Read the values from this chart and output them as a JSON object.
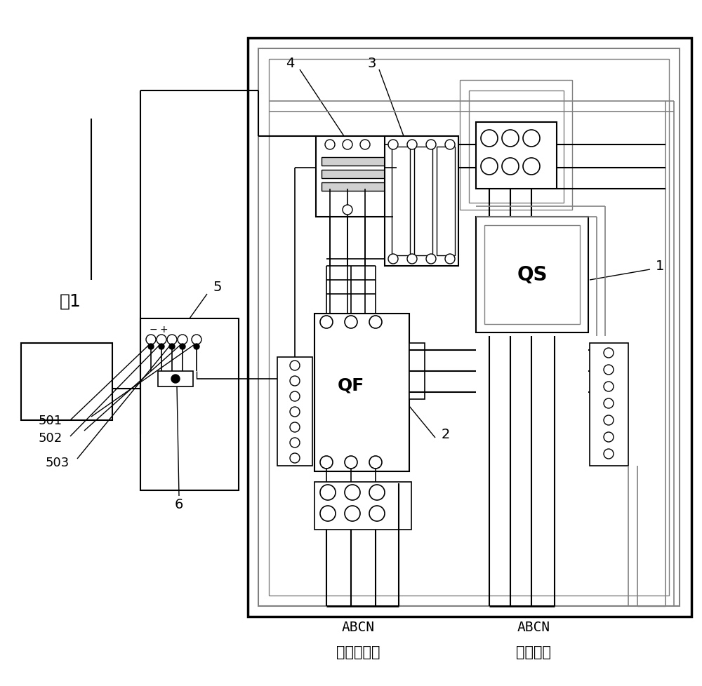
{
  "bg_color": "#ffffff",
  "lc": "#000000",
  "gc": "#808080",
  "fig_label": "图1",
  "label_1": "1",
  "label_2": "2",
  "label_3": "3",
  "label_4": "4",
  "label_5": "5",
  "label_6": "6",
  "label_501": "501",
  "label_502": "502",
  "label_503": "503",
  "text_QS": "QS",
  "text_QF": "QF",
  "text_ABCN_left": "ABCN",
  "text_ABCN_right": "ABCN",
  "text_inv_out": "逆变器输出",
  "text_grid": "并电网相"
}
